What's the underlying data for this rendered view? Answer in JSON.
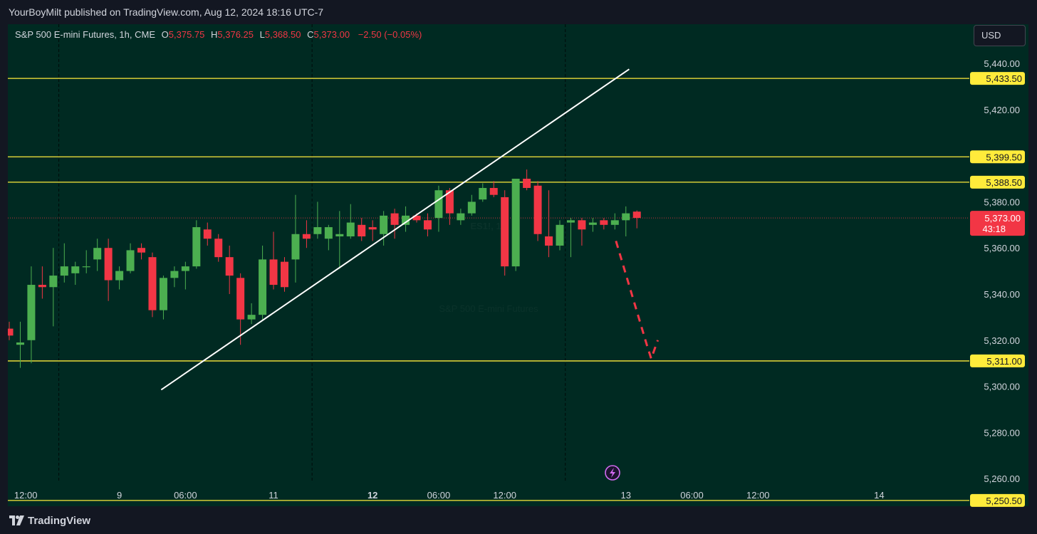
{
  "header": {
    "publisher_text": "YourBoyMilt published on TradingView.com, Aug 12, 2024 18:16 UTC-7"
  },
  "legend": {
    "symbol": "S&P 500 E-mini Futures, 1h, CME",
    "open_label": "O",
    "open": "5,375.75",
    "high_label": "H",
    "high": "5,376.25",
    "low_label": "L",
    "low": "5,368.50",
    "close_label": "C",
    "close": "5,373.00",
    "change": "−2.50 (−0.05%)"
  },
  "currency_button": "USD",
  "footer": {
    "brand": "TradingView"
  },
  "colors": {
    "background": "#002a22",
    "up": "#4caf50",
    "down": "#f23645",
    "level_line": "#ffeb3b",
    "trendline": "#ffffff",
    "projection": "#f23645"
  },
  "chart_data": {
    "type": "candlestick",
    "watermark": [
      "ES1!, 1h",
      "S&P 500 E-mini Futures"
    ],
    "price_axis": {
      "ylim": [
        5248,
        5457
      ],
      "ticks": [
        "5,440.00",
        "5,420.00",
        "5,380.00",
        "5,360.00",
        "5,340.00",
        "5,320.00",
        "5,300.00",
        "5,280.00",
        "5,260.00"
      ],
      "tick_values": [
        5440,
        5420,
        5380,
        5360,
        5340,
        5320,
        5300,
        5280,
        5260
      ]
    },
    "time_axis": {
      "ticks": [
        {
          "label": "12:00",
          "bar": 1.5,
          "bold": false
        },
        {
          "label": "9",
          "bar": 10,
          "bold": false
        },
        {
          "label": "06:00",
          "bar": 16,
          "bold": false
        },
        {
          "label": "11",
          "bar": 24,
          "bold": false
        },
        {
          "label": "12",
          "bar": 33,
          "bold": true
        },
        {
          "label": "06:00",
          "bar": 39,
          "bold": false
        },
        {
          "label": "12:00",
          "bar": 45,
          "bold": false
        },
        {
          "label": "13",
          "bar": 56,
          "bold": false
        },
        {
          "label": "06:00",
          "bar": 62,
          "bold": false
        },
        {
          "label": "12:00",
          "bar": 68,
          "bold": false
        },
        {
          "label": "14",
          "bar": 79,
          "bold": false
        }
      ],
      "session_breaks": [
        4.5,
        27.5,
        50.5
      ]
    },
    "levels": [
      {
        "price": 5433.5,
        "label": "5,433.50"
      },
      {
        "price": 5399.5,
        "label": "5,399.50"
      },
      {
        "price": 5388.5,
        "label": "5,388.50"
      },
      {
        "price": 5311.0,
        "label": "5,311.00"
      },
      {
        "price": 5250.5,
        "label": "5,250.50"
      }
    ],
    "last_price": {
      "price": 5373.0,
      "label": "5,373.00",
      "countdown": "43:18"
    },
    "trendline": {
      "from": {
        "bar": 13.8,
        "price": 5298.5
      },
      "to": {
        "bar": 56.3,
        "price": 5437.5
      }
    },
    "projection": [
      {
        "bar": 55.1,
        "price": 5363
      },
      {
        "bar": 57.9,
        "price": 5318
      },
      {
        "bar": 58.3,
        "price": 5312
      },
      {
        "bar": 58.9,
        "price": 5320
      }
    ],
    "candles": [
      {
        "o": 5325,
        "h": 5328,
        "l": 5320,
        "c": 5322
      },
      {
        "o": 5318,
        "h": 5328,
        "l": 5308,
        "c": 5319
      },
      {
        "o": 5320,
        "h": 5352,
        "l": 5310,
        "c": 5344
      },
      {
        "o": 5344,
        "h": 5352,
        "l": 5338,
        "c": 5343
      },
      {
        "o": 5343,
        "h": 5360,
        "l": 5326,
        "c": 5348
      },
      {
        "o": 5348,
        "h": 5362,
        "l": 5345,
        "c": 5352
      },
      {
        "o": 5349,
        "h": 5354,
        "l": 5344,
        "c": 5352
      },
      {
        "o": 5352,
        "h": 5359,
        "l": 5349,
        "c": 5352
      },
      {
        "o": 5355,
        "h": 5364,
        "l": 5350,
        "c": 5360
      },
      {
        "o": 5360,
        "h": 5364,
        "l": 5337,
        "c": 5346
      },
      {
        "o": 5346,
        "h": 5352,
        "l": 5342,
        "c": 5350
      },
      {
        "o": 5350,
        "h": 5362,
        "l": 5349,
        "c": 5359
      },
      {
        "o": 5360,
        "h": 5362,
        "l": 5355,
        "c": 5358
      },
      {
        "o": 5356,
        "h": 5358,
        "l": 5330,
        "c": 5333
      },
      {
        "o": 5333,
        "h": 5348,
        "l": 5329,
        "c": 5347
      },
      {
        "o": 5347,
        "h": 5352,
        "l": 5343,
        "c": 5350
      },
      {
        "o": 5350,
        "h": 5354,
        "l": 5342,
        "c": 5352
      },
      {
        "o": 5352,
        "h": 5372,
        "l": 5351,
        "c": 5369
      },
      {
        "o": 5368,
        "h": 5371,
        "l": 5361,
        "c": 5364
      },
      {
        "o": 5364,
        "h": 5366,
        "l": 5354,
        "c": 5356
      },
      {
        "o": 5356,
        "h": 5361,
        "l": 5340,
        "c": 5348
      },
      {
        "o": 5347,
        "h": 5349,
        "l": 5318,
        "c": 5329
      },
      {
        "o": 5329,
        "h": 5336,
        "l": 5327,
        "c": 5331
      },
      {
        "o": 5331,
        "h": 5361,
        "l": 5329,
        "c": 5355
      },
      {
        "o": 5355,
        "h": 5367,
        "l": 5342,
        "c": 5344
      },
      {
        "o": 5354,
        "h": 5356,
        "l": 5341,
        "c": 5343
      },
      {
        "o": 5355,
        "h": 5383,
        "l": 5345,
        "c": 5366
      },
      {
        "o": 5366,
        "h": 5372,
        "l": 5360,
        "c": 5364
      },
      {
        "o": 5366,
        "h": 5380,
        "l": 5364,
        "c": 5369
      },
      {
        "o": 5364,
        "h": 5370,
        "l": 5359,
        "c": 5369
      },
      {
        "o": 5365,
        "h": 5376,
        "l": 5351,
        "c": 5366
      },
      {
        "o": 5365,
        "h": 5379,
        "l": 5364,
        "c": 5371
      },
      {
        "o": 5370,
        "h": 5373,
        "l": 5363,
        "c": 5365
      },
      {
        "o": 5369,
        "h": 5372,
        "l": 5363,
        "c": 5368
      },
      {
        "o": 5366,
        "h": 5376,
        "l": 5361,
        "c": 5374
      },
      {
        "o": 5375,
        "h": 5377,
        "l": 5364,
        "c": 5370
      },
      {
        "o": 5370,
        "h": 5378,
        "l": 5367,
        "c": 5374
      },
      {
        "o": 5374,
        "h": 5375,
        "l": 5371,
        "c": 5372
      },
      {
        "o": 5372,
        "h": 5375,
        "l": 5365,
        "c": 5368
      },
      {
        "o": 5373,
        "h": 5387,
        "l": 5367,
        "c": 5385
      },
      {
        "o": 5385,
        "h": 5386,
        "l": 5370,
        "c": 5375
      },
      {
        "o": 5372,
        "h": 5377,
        "l": 5370,
        "c": 5375
      },
      {
        "o": 5375,
        "h": 5383,
        "l": 5374,
        "c": 5380
      },
      {
        "o": 5381,
        "h": 5388,
        "l": 5380,
        "c": 5386
      },
      {
        "o": 5386,
        "h": 5389,
        "l": 5382,
        "c": 5383
      },
      {
        "o": 5382,
        "h": 5385,
        "l": 5348,
        "c": 5352
      },
      {
        "o": 5352,
        "h": 5390,
        "l": 5350,
        "c": 5390
      },
      {
        "o": 5390,
        "h": 5394,
        "l": 5385,
        "c": 5386
      },
      {
        "o": 5387,
        "h": 5389,
        "l": 5363,
        "c": 5366
      },
      {
        "o": 5365,
        "h": 5385,
        "l": 5356,
        "c": 5361
      },
      {
        "o": 5361,
        "h": 5372,
        "l": 5359,
        "c": 5370
      },
      {
        "o": 5371,
        "h": 5373,
        "l": 5356,
        "c": 5372
      },
      {
        "o": 5372,
        "h": 5373,
        "l": 5361,
        "c": 5368
      },
      {
        "o": 5370,
        "h": 5373,
        "l": 5367,
        "c": 5371
      },
      {
        "o": 5372,
        "h": 5373,
        "l": 5368,
        "c": 5370
      },
      {
        "o": 5370,
        "h": 5375,
        "l": 5368,
        "c": 5372
      },
      {
        "o": 5372,
        "h": 5378,
        "l": 5365,
        "c": 5375
      },
      {
        "o": 5375.75,
        "h": 5376.25,
        "l": 5368.5,
        "c": 5373
      }
    ]
  }
}
